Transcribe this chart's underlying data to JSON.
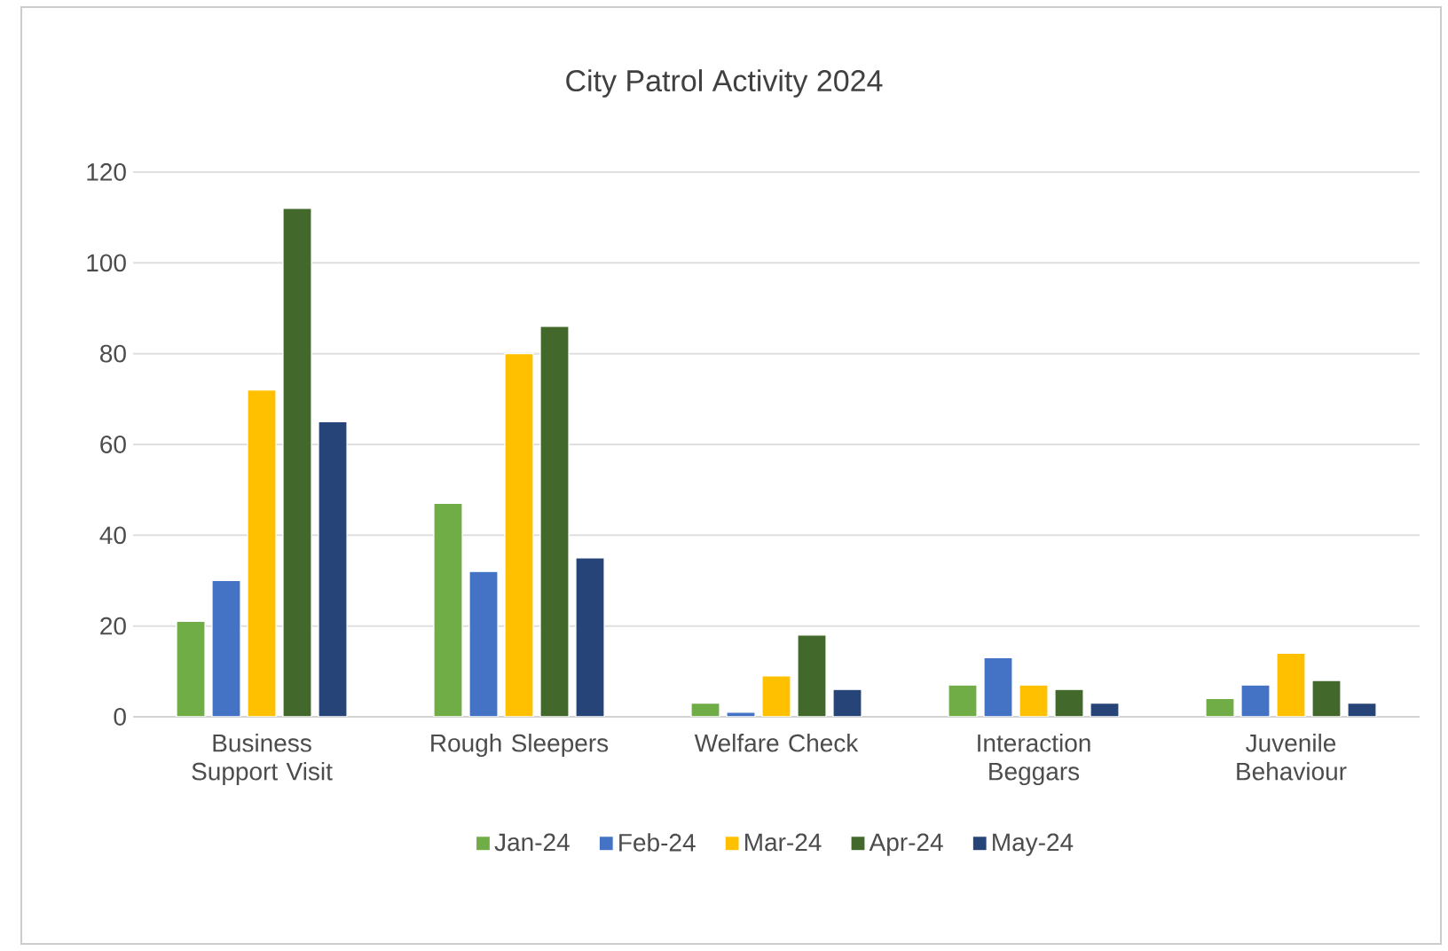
{
  "chart_data": {
    "type": "bar",
    "title": "City Patrol Activity 2024",
    "categories": [
      "Business Support Visit",
      "Rough Sleepers",
      "Welfare Check",
      "Interaction Beggars",
      "Juvenile Behaviour"
    ],
    "series": [
      {
        "name": "Jan-24",
        "color": "#70ad47",
        "values": [
          21,
          47,
          3,
          7,
          4
        ]
      },
      {
        "name": "Feb-24",
        "color": "#4472c4",
        "values": [
          30,
          32,
          1,
          13,
          7
        ]
      },
      {
        "name": "Mar-24",
        "color": "#ffc000",
        "values": [
          72,
          80,
          9,
          7,
          14
        ]
      },
      {
        "name": "Apr-24",
        "color": "#43682b",
        "values": [
          112,
          86,
          18,
          6,
          8
        ]
      },
      {
        "name": "May-24",
        "color": "#264478",
        "values": [
          65,
          35,
          6,
          3,
          3
        ]
      }
    ],
    "ylim": [
      0,
      120
    ],
    "yticks": [
      0,
      20,
      40,
      60,
      80,
      100,
      120
    ],
    "grid": "y",
    "legend": "bottom"
  }
}
